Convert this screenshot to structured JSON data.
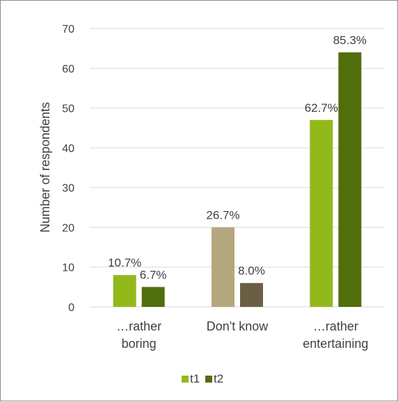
{
  "chart_data": {
    "type": "bar",
    "ylabel": "Number of respondents",
    "ylim": [
      0,
      70
    ],
    "yticks": [
      0,
      10,
      20,
      30,
      40,
      50,
      60,
      70
    ],
    "grid": true,
    "legend_position": "bottom",
    "categories": [
      [
        "…rather",
        "boring"
      ],
      [
        "Don't know"
      ],
      [
        "…rather",
        "entertaining"
      ]
    ],
    "series": [
      {
        "name": "t1",
        "values": [
          8,
          20,
          47
        ],
        "labels": [
          "10.7%",
          "26.7%",
          "62.7%"
        ]
      },
      {
        "name": "t2",
        "values": [
          5,
          6,
          64
        ],
        "labels": [
          "6.7%",
          "8.0%",
          "85.3%"
        ]
      }
    ],
    "colors": {
      "t1": [
        "#92b91a",
        "#b5a77c",
        "#92b91a"
      ],
      "t2": [
        "#516e0c",
        "#6a5f45",
        "#516e0c"
      ],
      "legend_t1": "#92b91a",
      "legend_t2": "#516e0c",
      "grid": "#d9d9d9",
      "text": "#404040"
    }
  }
}
